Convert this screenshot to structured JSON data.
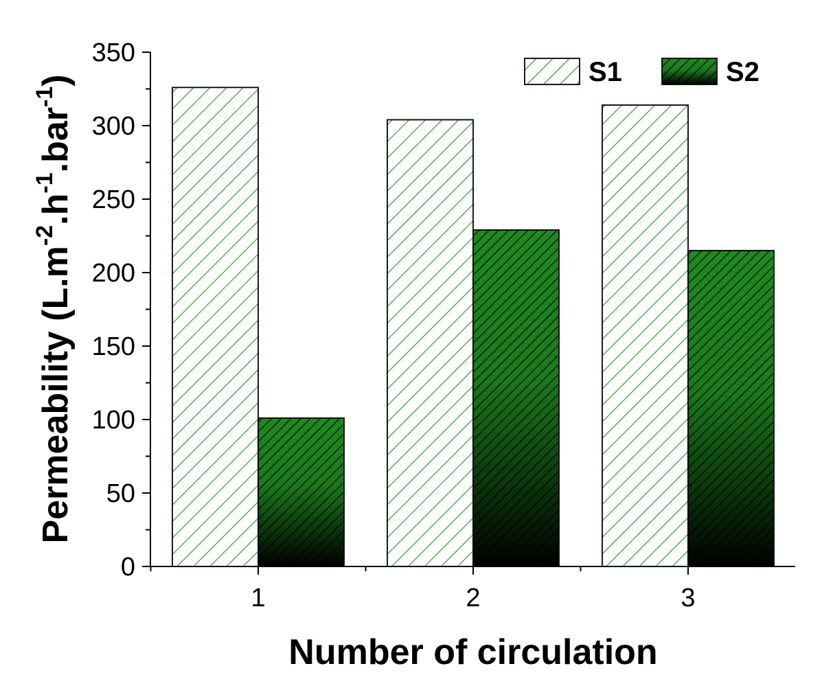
{
  "chart_data": {
    "type": "bar",
    "categories": [
      "1",
      "2",
      "3"
    ],
    "series": [
      {
        "name": "S1",
        "values": [
          326,
          304,
          314
        ],
        "pattern": "light-hatch",
        "color": "#1a9a1a"
      },
      {
        "name": "S2",
        "values": [
          101,
          229,
          215
        ],
        "pattern": "dark-hatch-gradient",
        "color": "#1f8a1f"
      }
    ],
    "xlabel": "Number of circulation",
    "ylabel": {
      "base": "Permeability (L.m",
      "sup1": "-2",
      "mid1": ".h",
      "sup2": "-1",
      "mid2": ".bar",
      "sup3": "-1",
      "end": ")"
    },
    "ylim": [
      0,
      350
    ],
    "yticks": [
      0,
      50,
      100,
      150,
      200,
      250,
      300,
      350
    ],
    "legend_position": "top-right",
    "grid": false
  }
}
